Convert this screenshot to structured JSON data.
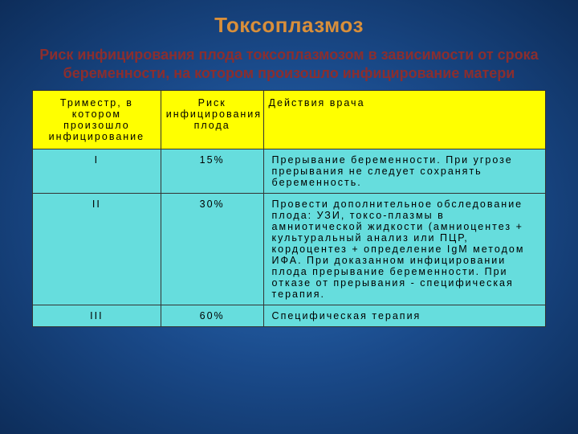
{
  "title": "Токсоплазмоз",
  "title_color": "#d98f3a",
  "subtitle": "Риск инфицирования плода токсоплазмозом в зависимости от срока беременности, на котором произошло инфицирование матери",
  "subtitle_color": "#8b2e2e",
  "table": {
    "header_bg": "#ffff00",
    "body_bg": "#66dddd",
    "border_color": "#333333",
    "columns": [
      "Триместр, в котором произошло инфицирование",
      "Риск инфицирования плода",
      "Действия врача"
    ],
    "rows": [
      {
        "trimester": "I",
        "risk": "15%",
        "action": "Прерывание беременности. При угрозе прерывания не следует сохранять беременность."
      },
      {
        "trimester": "II",
        "risk": "30%",
        "action": "Провести дополнительное обследование плода: УЗИ, токсо-плазмы в амниотической жидкости (амниоцентез + культуральный анализ или ПЦР, кордоцентез + определение IgM методом ИФА. При доказанном инфицировании плода прерывание беременности. При отказе от прерывания - специфическая терапия."
      },
      {
        "trimester": "III",
        "risk": "60%",
        "action": "Специфическая терапия"
      }
    ]
  }
}
